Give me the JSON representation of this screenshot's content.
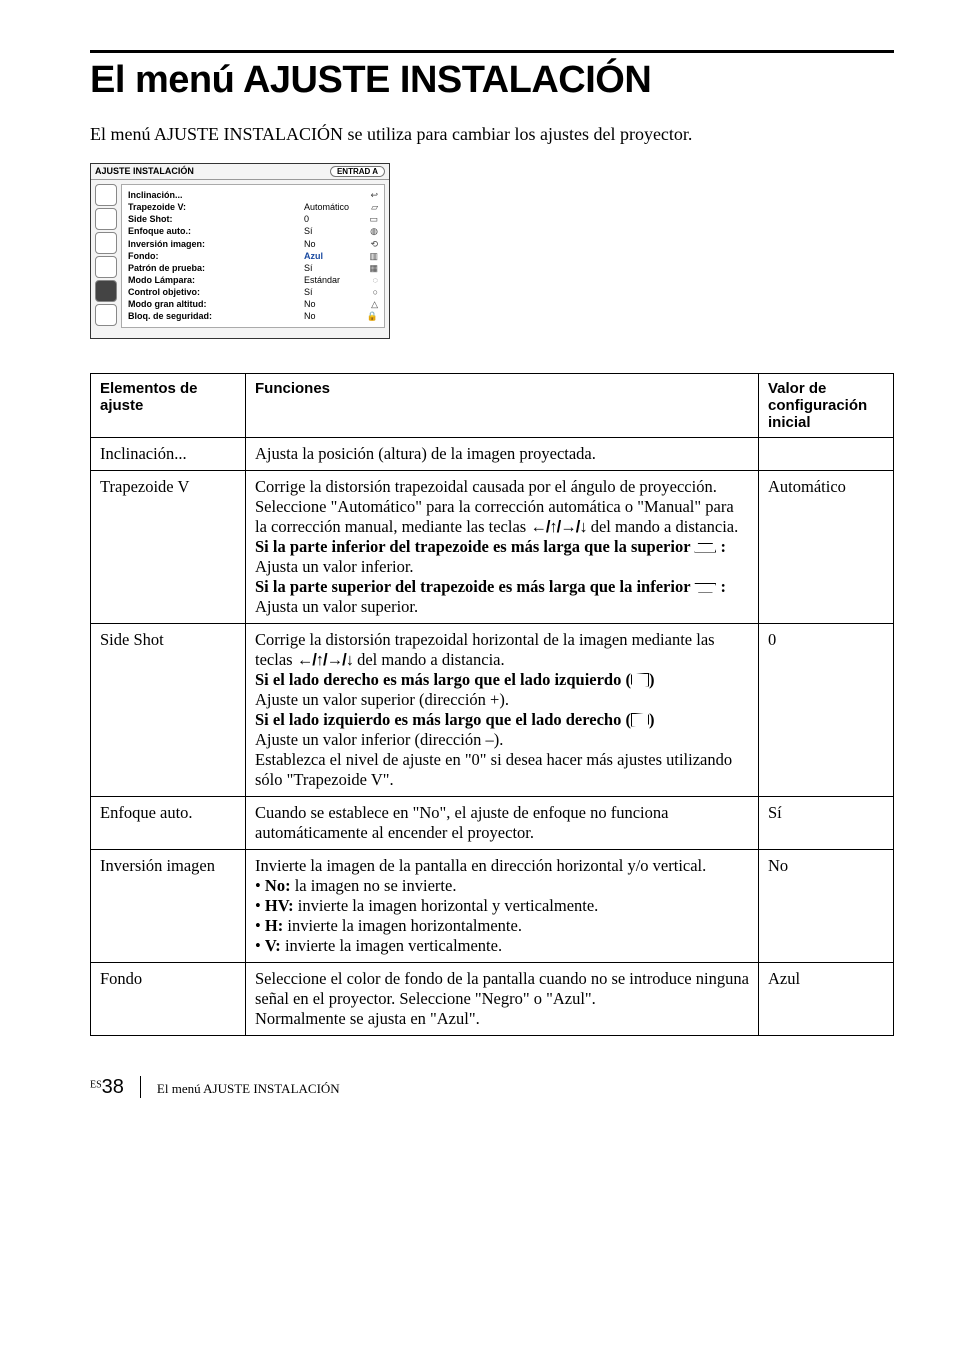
{
  "heading": "El menú AJUSTE INSTALACIÓN",
  "intro": "El menú AJUSTE INSTALACIÓN se utiliza para cambiar los ajustes del proyector.",
  "menu_shot": {
    "title": "AJUSTE INSTALACIÓN",
    "input_label": "ENTRAD A",
    "rows": [
      {
        "k": "Inclinación...",
        "v": "",
        "ic": "↩"
      },
      {
        "k": "Trapezoide V:",
        "v": "Automático",
        "ic": "▱"
      },
      {
        "k": "Side Shot:",
        "v": "0",
        "ic": "▭"
      },
      {
        "k": "Enfoque auto.:",
        "v": "Sí",
        "ic": "◍"
      },
      {
        "k": "Inversión imagen:",
        "v": "No",
        "ic": "⟲"
      },
      {
        "k": "Fondo:",
        "v": "Azul",
        "ic": "▥",
        "highlight": true
      },
      {
        "k": "Patrón de prueba:",
        "v": "Sí",
        "ic": "▦"
      },
      {
        "k": "Modo Lámpara:",
        "v": "Estándar",
        "ic": "◌"
      },
      {
        "k": "Control objetivo:",
        "v": "Sí",
        "ic": "○"
      },
      {
        "k": "Modo gran altitud:",
        "v": "No",
        "ic": "△"
      },
      {
        "k": "Bloq. de seguridad:",
        "v": "No",
        "ic": "🔒"
      }
    ]
  },
  "table": {
    "headers": {
      "elem": "Elementos de ajuste",
      "func": "Funciones",
      "val": "Valor de configuración inicial"
    },
    "rows": {
      "inclinacion": {
        "elem": "Inclinación...",
        "func": "Ajusta la posición (altura) de la imagen proyectada.",
        "val": ""
      },
      "trapezoide": {
        "elem": "Trapezoide V",
        "p1a": "Corrige la distorsión trapezoidal causada por el ángulo de proyección. Seleccione \"Automático\" para la corrección automática o \"Manual\" para la corrección manual, mediante las teclas ",
        "arrows": "←/↑/→/↓",
        "p1b": " del mando a distancia.",
        "b1a": "Si la parte inferior del trapezoide es más larga que la superior ",
        "b1b": " :",
        "b1c": " Ajusta un valor inferior.",
        "b2a": "Si la parte superior del trapezoide es más larga que la inferior ",
        "b2b": " :",
        "b2c": " Ajusta un valor superior.",
        "val": "Automático"
      },
      "sideshot": {
        "elem": "Side Shot",
        "p1a": "Corrige la distorsión trapezoidal horizontal de la imagen mediante las teclas ",
        "arrows": "←/↑/→/↓",
        "p1b": " del mando a distancia.",
        "b1": "Si el lado derecho es más largo que el lado izquierdo (",
        "b1end": ")",
        "p2": "Ajuste un valor superior (dirección +).",
        "b2": "Si el lado izquierdo es más largo que el lado derecho (",
        "b2end": ")",
        "p3": "Ajuste un valor inferior (dirección –).",
        "p4": "Establezca el nivel de ajuste en \"0\" si desea hacer más ajustes utilizando sólo \"Trapezoide V\".",
        "val": "0"
      },
      "enfoque": {
        "elem": "Enfoque auto.",
        "func": "Cuando se establece en \"No\", el ajuste de enfoque no funciona automáticamente al encender el proyector.",
        "val": "Sí"
      },
      "inversion": {
        "elem": "Inversión imagen",
        "p1": "Invierte la imagen de la pantalla en dirección horizontal y/o vertical.",
        "li1a": "No:",
        "li1b": " la imagen no se invierte.",
        "li2a": "HV:",
        "li2b": " invierte la imagen horizontal y verticalmente.",
        "li3a": "H:",
        "li3b": " invierte la imagen horizontalmente.",
        "li4a": "V:",
        "li4b": " invierte la imagen verticalmente.",
        "val": "No"
      },
      "fondo": {
        "elem": "Fondo",
        "p1": "Seleccione el color de fondo de la pantalla cuando no se introduce ninguna señal en el proyector. Seleccione \"Negro\" o \"Azul\".",
        "p2": "Normalmente se ajusta en \"Azul\".",
        "val": "Azul"
      }
    }
  },
  "footer": {
    "es": "ES",
    "page": "38",
    "title": "El menú AJUSTE INSTALACIÓN"
  }
}
